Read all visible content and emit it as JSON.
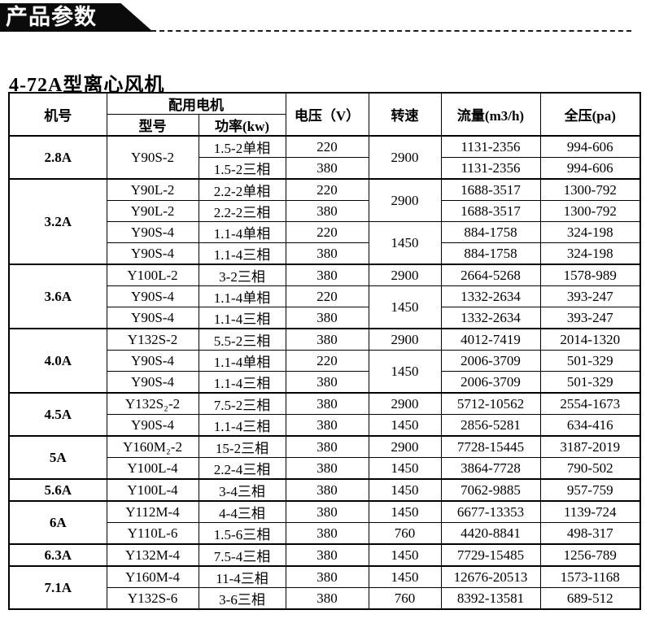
{
  "banner": {
    "label": "产品参数"
  },
  "title": "4-72A型离心风机",
  "table": {
    "headers": {
      "machine_no": "机号",
      "motor_group": "配用电机",
      "model": "型号",
      "power": "功率(kw)",
      "voltage": "电压（V）",
      "speed": "转速",
      "flow": "流量(m3/h)",
      "pressure": "全压(pa)"
    },
    "groups": [
      {
        "machine": "2.8A",
        "rows": [
          [
            {
              "col": "model",
              "text": "Y90S-2",
              "rs": 2
            },
            {
              "col": "power",
              "text": "1.5-2单相"
            },
            {
              "col": "voltage",
              "text": "220"
            },
            {
              "col": "speed",
              "text": "2900",
              "rs": 2
            },
            {
              "col": "flow",
              "text": "1131-2356"
            },
            {
              "col": "pressure",
              "text": "994-606"
            }
          ],
          [
            {
              "col": "power",
              "text": "1.5-2三相"
            },
            {
              "col": "voltage",
              "text": "380"
            },
            {
              "col": "flow",
              "text": "1131-2356"
            },
            {
              "col": "pressure",
              "text": "994-606"
            }
          ]
        ]
      },
      {
        "machine": "3.2A",
        "rows": [
          [
            {
              "col": "model",
              "text": "Y90L-2"
            },
            {
              "col": "power",
              "text": "2.2-2单相"
            },
            {
              "col": "voltage",
              "text": "220"
            },
            {
              "col": "speed",
              "text": "2900",
              "rs": 2
            },
            {
              "col": "flow",
              "text": "1688-3517"
            },
            {
              "col": "pressure",
              "text": "1300-792"
            }
          ],
          [
            {
              "col": "model",
              "text": "Y90L-2"
            },
            {
              "col": "power",
              "text": "2.2-2三相"
            },
            {
              "col": "voltage",
              "text": "380"
            },
            {
              "col": "flow",
              "text": "1688-3517"
            },
            {
              "col": "pressure",
              "text": "1300-792"
            }
          ],
          [
            {
              "col": "model",
              "text": "Y90S-4"
            },
            {
              "col": "power",
              "text": "1.1-4单相"
            },
            {
              "col": "voltage",
              "text": "220"
            },
            {
              "col": "speed",
              "text": "1450",
              "rs": 2
            },
            {
              "col": "flow",
              "text": "884-1758"
            },
            {
              "col": "pressure",
              "text": "324-198"
            }
          ],
          [
            {
              "col": "model",
              "text": "Y90S-4"
            },
            {
              "col": "power",
              "text": "1.1-4三相"
            },
            {
              "col": "voltage",
              "text": "380"
            },
            {
              "col": "flow",
              "text": "884-1758"
            },
            {
              "col": "pressure",
              "text": "324-198"
            }
          ]
        ]
      },
      {
        "machine": "3.6A",
        "rows": [
          [
            {
              "col": "model",
              "text": "Y100L-2"
            },
            {
              "col": "power",
              "text": "3-2三相"
            },
            {
              "col": "voltage",
              "text": "380"
            },
            {
              "col": "speed",
              "text": "2900"
            },
            {
              "col": "flow",
              "text": "2664-5268"
            },
            {
              "col": "pressure",
              "text": "1578-989"
            }
          ],
          [
            {
              "col": "model",
              "text": "Y90S-4"
            },
            {
              "col": "power",
              "text": "1.1-4单相"
            },
            {
              "col": "voltage",
              "text": "220"
            },
            {
              "col": "speed",
              "text": "1450",
              "rs": 2
            },
            {
              "col": "flow",
              "text": "1332-2634"
            },
            {
              "col": "pressure",
              "text": "393-247"
            }
          ],
          [
            {
              "col": "model",
              "text": "Y90S-4"
            },
            {
              "col": "power",
              "text": "1.1-4三相"
            },
            {
              "col": "voltage",
              "text": "380"
            },
            {
              "col": "flow",
              "text": "1332-2634"
            },
            {
              "col": "pressure",
              "text": "393-247"
            }
          ]
        ]
      },
      {
        "machine": "4.0A",
        "rows": [
          [
            {
              "col": "model",
              "text": "Y132S-2"
            },
            {
              "col": "power",
              "text": "5.5-2三相"
            },
            {
              "col": "voltage",
              "text": "380"
            },
            {
              "col": "speed",
              "text": "2900"
            },
            {
              "col": "flow",
              "text": "4012-7419"
            },
            {
              "col": "pressure",
              "text": "2014-1320"
            }
          ],
          [
            {
              "col": "model",
              "text": "Y90S-4"
            },
            {
              "col": "power",
              "text": "1.1-4单相"
            },
            {
              "col": "voltage",
              "text": "220"
            },
            {
              "col": "speed",
              "text": "1450",
              "rs": 2
            },
            {
              "col": "flow",
              "text": "2006-3709"
            },
            {
              "col": "pressure",
              "text": "501-329"
            }
          ],
          [
            {
              "col": "model",
              "text": "Y90S-4"
            },
            {
              "col": "power",
              "text": "1.1-4三相"
            },
            {
              "col": "voltage",
              "text": "380"
            },
            {
              "col": "flow",
              "text": "2006-3709"
            },
            {
              "col": "pressure",
              "text": "501-329"
            }
          ]
        ]
      },
      {
        "machine": "4.5A",
        "rows": [
          [
            {
              "col": "model",
              "text": "Y132S₂-2"
            },
            {
              "col": "power",
              "text": "7.5-2三相"
            },
            {
              "col": "voltage",
              "text": "380"
            },
            {
              "col": "speed",
              "text": "2900"
            },
            {
              "col": "flow",
              "text": "5712-10562"
            },
            {
              "col": "pressure",
              "text": "2554-1673"
            }
          ],
          [
            {
              "col": "model",
              "text": "Y90S-4"
            },
            {
              "col": "power",
              "text": "1.1-4三相"
            },
            {
              "col": "voltage",
              "text": "380"
            },
            {
              "col": "speed",
              "text": "1450"
            },
            {
              "col": "flow",
              "text": "2856-5281"
            },
            {
              "col": "pressure",
              "text": "634-416"
            }
          ]
        ]
      },
      {
        "machine": "5A",
        "rows": [
          [
            {
              "col": "model",
              "text": "Y160M₂-2"
            },
            {
              "col": "power",
              "text": "15-2三相"
            },
            {
              "col": "voltage",
              "text": "380"
            },
            {
              "col": "speed",
              "text": "2900"
            },
            {
              "col": "flow",
              "text": "7728-15445"
            },
            {
              "col": "pressure",
              "text": "3187-2019"
            }
          ],
          [
            {
              "col": "model",
              "text": "Y100L-4"
            },
            {
              "col": "power",
              "text": "2.2-4三相"
            },
            {
              "col": "voltage",
              "text": "380"
            },
            {
              "col": "speed",
              "text": "1450"
            },
            {
              "col": "flow",
              "text": "3864-7728"
            },
            {
              "col": "pressure",
              "text": "790-502"
            }
          ]
        ]
      },
      {
        "machine": "5.6A",
        "rows": [
          [
            {
              "col": "model",
              "text": "Y100L-4"
            },
            {
              "col": "power",
              "text": "3-4三相"
            },
            {
              "col": "voltage",
              "text": "380"
            },
            {
              "col": "speed",
              "text": "1450"
            },
            {
              "col": "flow",
              "text": "7062-9885"
            },
            {
              "col": "pressure",
              "text": "957-759"
            }
          ]
        ]
      },
      {
        "machine": "6A",
        "rows": [
          [
            {
              "col": "model",
              "text": "Y112M-4"
            },
            {
              "col": "power",
              "text": "4-4三相"
            },
            {
              "col": "voltage",
              "text": "380"
            },
            {
              "col": "speed",
              "text": "1450"
            },
            {
              "col": "flow",
              "text": "6677-13353"
            },
            {
              "col": "pressure",
              "text": "1139-724"
            }
          ],
          [
            {
              "col": "model",
              "text": "Y110L-6"
            },
            {
              "col": "power",
              "text": "1.5-6三相"
            },
            {
              "col": "voltage",
              "text": "380"
            },
            {
              "col": "speed",
              "text": "760"
            },
            {
              "col": "flow",
              "text": "4420-8841"
            },
            {
              "col": "pressure",
              "text": "498-317"
            }
          ]
        ]
      },
      {
        "machine": "6.3A",
        "rows": [
          [
            {
              "col": "model",
              "text": "Y132M-4"
            },
            {
              "col": "power",
              "text": "7.5-4三相"
            },
            {
              "col": "voltage",
              "text": "380"
            },
            {
              "col": "speed",
              "text": "1450"
            },
            {
              "col": "flow",
              "text": "7729-15485"
            },
            {
              "col": "pressure",
              "text": "1256-789"
            }
          ]
        ]
      },
      {
        "machine": "7.1A",
        "rows": [
          [
            {
              "col": "model",
              "text": "Y160M-4"
            },
            {
              "col": "power",
              "text": "11-4三相"
            },
            {
              "col": "voltage",
              "text": "380"
            },
            {
              "col": "speed",
              "text": "1450"
            },
            {
              "col": "flow",
              "text": "12676-20513"
            },
            {
              "col": "pressure",
              "text": "1573-1168"
            }
          ],
          [
            {
              "col": "model",
              "text": "Y132S-6"
            },
            {
              "col": "power",
              "text": "3-6三相"
            },
            {
              "col": "voltage",
              "text": "380"
            },
            {
              "col": "speed",
              "text": "760"
            },
            {
              "col": "flow",
              "text": "8392-13581"
            },
            {
              "col": "pressure",
              "text": "689-512"
            }
          ]
        ]
      }
    ]
  },
  "colors": {
    "banner_bg": "#0b0b0b",
    "banner_text": "#ffffff",
    "border": "#000000"
  }
}
